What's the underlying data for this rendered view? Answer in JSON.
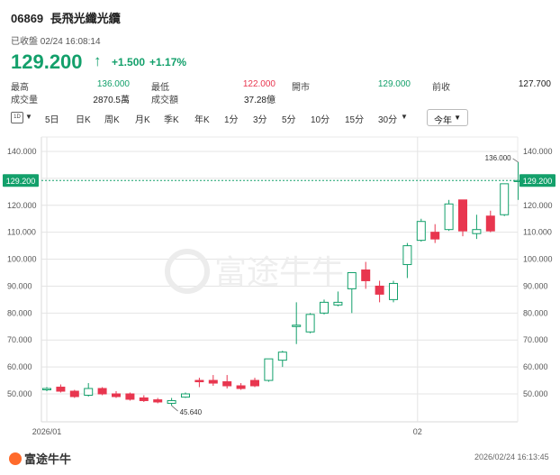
{
  "header": {
    "code": "06869",
    "name": "長飛光纖光纜",
    "status": "已收盤 02/24 16:08:14",
    "price": "129.200",
    "change": "+1.500",
    "change_pct": "+1.17%"
  },
  "stats": [
    {
      "label": "最高",
      "value": "136.000",
      "tone": "green"
    },
    {
      "label": "最低",
      "value": "122.000",
      "tone": "red"
    },
    {
      "label": "開市",
      "value": "129.000",
      "tone": "green"
    },
    {
      "label": "前收",
      "value": "127.700",
      "tone": "plain"
    },
    {
      "label": "成交量",
      "value": "2870.5萬",
      "tone": "plain"
    },
    {
      "label": "成交額",
      "value": "37.28億",
      "tone": "plain"
    }
  ],
  "toolbar": {
    "day_icon": "1D",
    "items": [
      "5日",
      "日K",
      "周K",
      "月K",
      "季K",
      "年K",
      "1分",
      "3分",
      "5分",
      "10分",
      "15分",
      "30分"
    ],
    "period": "今年"
  },
  "chart_data": {
    "type": "candlestick",
    "y_ticks": [
      "140.000",
      "130.000",
      "120.000",
      "110.000",
      "100.000",
      "90.000",
      "80.000",
      "70.000",
      "60.000",
      "50.000"
    ],
    "y_tick_values": [
      140,
      130,
      120,
      110,
      100,
      90,
      80,
      70,
      60,
      50
    ],
    "ylim": [
      40,
      144
    ],
    "x_labels": [
      "2026/01",
      "02"
    ],
    "x_label_index": [
      0,
      27
    ],
    "current_price": 129.2,
    "current_price_label": "129.200",
    "max_label": "136.000",
    "min_label": "45.640",
    "max_value": 136.0,
    "min_value": 45.64,
    "candles": [
      {
        "o": 51.5,
        "h": 52.5,
        "l": 51.0,
        "c": 52.0
      },
      {
        "o": 52.5,
        "h": 53.5,
        "l": 50.5,
        "c": 51.0
      },
      {
        "o": 51.0,
        "h": 51.5,
        "l": 48.5,
        "c": 49.0
      },
      {
        "o": 49.5,
        "h": 54.0,
        "l": 49.0,
        "c": 52.0
      },
      {
        "o": 52.0,
        "h": 52.5,
        "l": 49.5,
        "c": 50.0
      },
      {
        "o": 50.0,
        "h": 51.0,
        "l": 48.5,
        "c": 49.0
      },
      {
        "o": 50.0,
        "h": 50.5,
        "l": 47.5,
        "c": 48.0
      },
      {
        "o": 48.5,
        "h": 49.5,
        "l": 47.0,
        "c": 47.5
      },
      {
        "o": 47.8,
        "h": 48.5,
        "l": 46.5,
        "c": 47.0
      },
      {
        "o": 46.5,
        "h": 48.5,
        "l": 45.64,
        "c": 47.5
      },
      {
        "o": 48.8,
        "h": 50.5,
        "l": 48.5,
        "c": 50.0
      },
      {
        "o": 55.0,
        "h": 56.0,
        "l": 52.5,
        "c": 54.5
      },
      {
        "o": 55.0,
        "h": 57.0,
        "l": 53.0,
        "c": 54.0
      },
      {
        "o": 54.5,
        "h": 57.0,
        "l": 52.0,
        "c": 53.0
      },
      {
        "o": 53.0,
        "h": 54.0,
        "l": 51.5,
        "c": 52.0
      },
      {
        "o": 55.0,
        "h": 56.0,
        "l": 52.5,
        "c": 53.0
      },
      {
        "o": 55.0,
        "h": 63.0,
        "l": 54.5,
        "c": 63.0
      },
      {
        "o": 62.5,
        "h": 66.0,
        "l": 60.0,
        "c": 65.5
      },
      {
        "o": 75.0,
        "h": 84.0,
        "l": 68.5,
        "c": 75.5
      },
      {
        "o": 73.0,
        "h": 80.0,
        "l": 72.5,
        "c": 79.5
      },
      {
        "o": 80.0,
        "h": 85.0,
        "l": 79.5,
        "c": 84.0
      },
      {
        "o": 83.0,
        "h": 88.0,
        "l": 82.5,
        "c": 84.0
      },
      {
        "o": 89.0,
        "h": 95.0,
        "l": 80.0,
        "c": 95.0
      },
      {
        "o": 96.0,
        "h": 99.0,
        "l": 89.0,
        "c": 92.0
      },
      {
        "o": 90.0,
        "h": 92.0,
        "l": 84.0,
        "c": 87.0
      },
      {
        "o": 85.0,
        "h": 92.0,
        "l": 84.0,
        "c": 91.0
      },
      {
        "o": 98.0,
        "h": 106.0,
        "l": 93.0,
        "c": 105.0
      },
      {
        "o": 107.0,
        "h": 115.0,
        "l": 106.5,
        "c": 114.0
      },
      {
        "o": 110.0,
        "h": 113.0,
        "l": 106.0,
        "c": 107.5
      },
      {
        "o": 111.0,
        "h": 122.0,
        "l": 110.5,
        "c": 120.5
      },
      {
        "o": 122.0,
        "h": 122.0,
        "l": 108.5,
        "c": 110.5
      },
      {
        "o": 109.5,
        "h": 116.5,
        "l": 107.5,
        "c": 111.0
      },
      {
        "o": 116.0,
        "h": 118.0,
        "l": 110.0,
        "c": 110.5
      },
      {
        "o": 116.5,
        "h": 128.0,
        "l": 116.0,
        "c": 128.0
      },
      {
        "o": 129.0,
        "h": 136.0,
        "l": 122.0,
        "c": 129.2
      }
    ]
  },
  "watermark": "富途牛牛",
  "footer": {
    "logo_text": "富途牛牛",
    "time": "2026/02/24 16:13:45"
  },
  "colors": {
    "up": "#13a06b",
    "down": "#e8364f",
    "grid": "#e4e4e4",
    "price_line": "#13a06b"
  }
}
